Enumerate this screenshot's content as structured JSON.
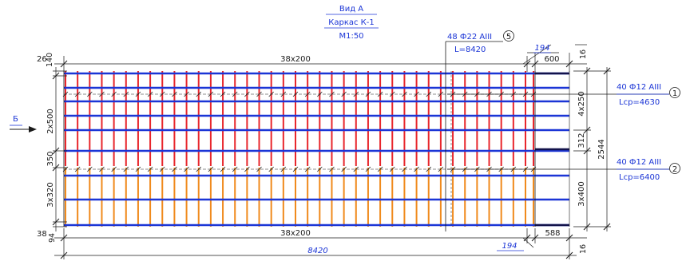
{
  "title": {
    "line1": "Вид А",
    "line2": "Каркас К-1",
    "line3": "М1:50"
  },
  "view_marker": "Б",
  "callouts": [
    {
      "id": "bar-5",
      "number": "5",
      "line1": "48 Ф22 АIII",
      "line2": "L=8420"
    },
    {
      "id": "bar-1",
      "number": "1",
      "line1": "40 Ф12 АIII",
      "line2": "Lср=4630"
    },
    {
      "id": "bar-2",
      "number": "2",
      "line1": "40 Ф12 АIII",
      "line2": "Lср=6400"
    }
  ],
  "dimensions": {
    "top_span": "38x200",
    "bottom_span": "38x200",
    "total_length": "8420",
    "top_extra": "194",
    "bottom_extra": "194",
    "top_right_overhang": "600",
    "bottom_right_overhang": "588",
    "top_corner_left": "26",
    "top_corner_right": "140",
    "top_right_vertical": "16",
    "bottom_right_vertical": "16",
    "bottom_corner_left": "38",
    "bottom_corner_right": "94",
    "left_upper": "2x500",
    "left_middle": "350",
    "left_lower": "3x320",
    "right_upper": "4x250",
    "right_middle": "312",
    "right_lower": "3x400",
    "right_total": "2544"
  },
  "colors": {
    "upper_transverse_bars": "#e8262c",
    "lower_transverse_bars": "#f08a1c",
    "longitudinal_bars": "#1b35d6",
    "dimension_lines": "#1a1a1a",
    "annotation_text": "#1b35d6"
  }
}
